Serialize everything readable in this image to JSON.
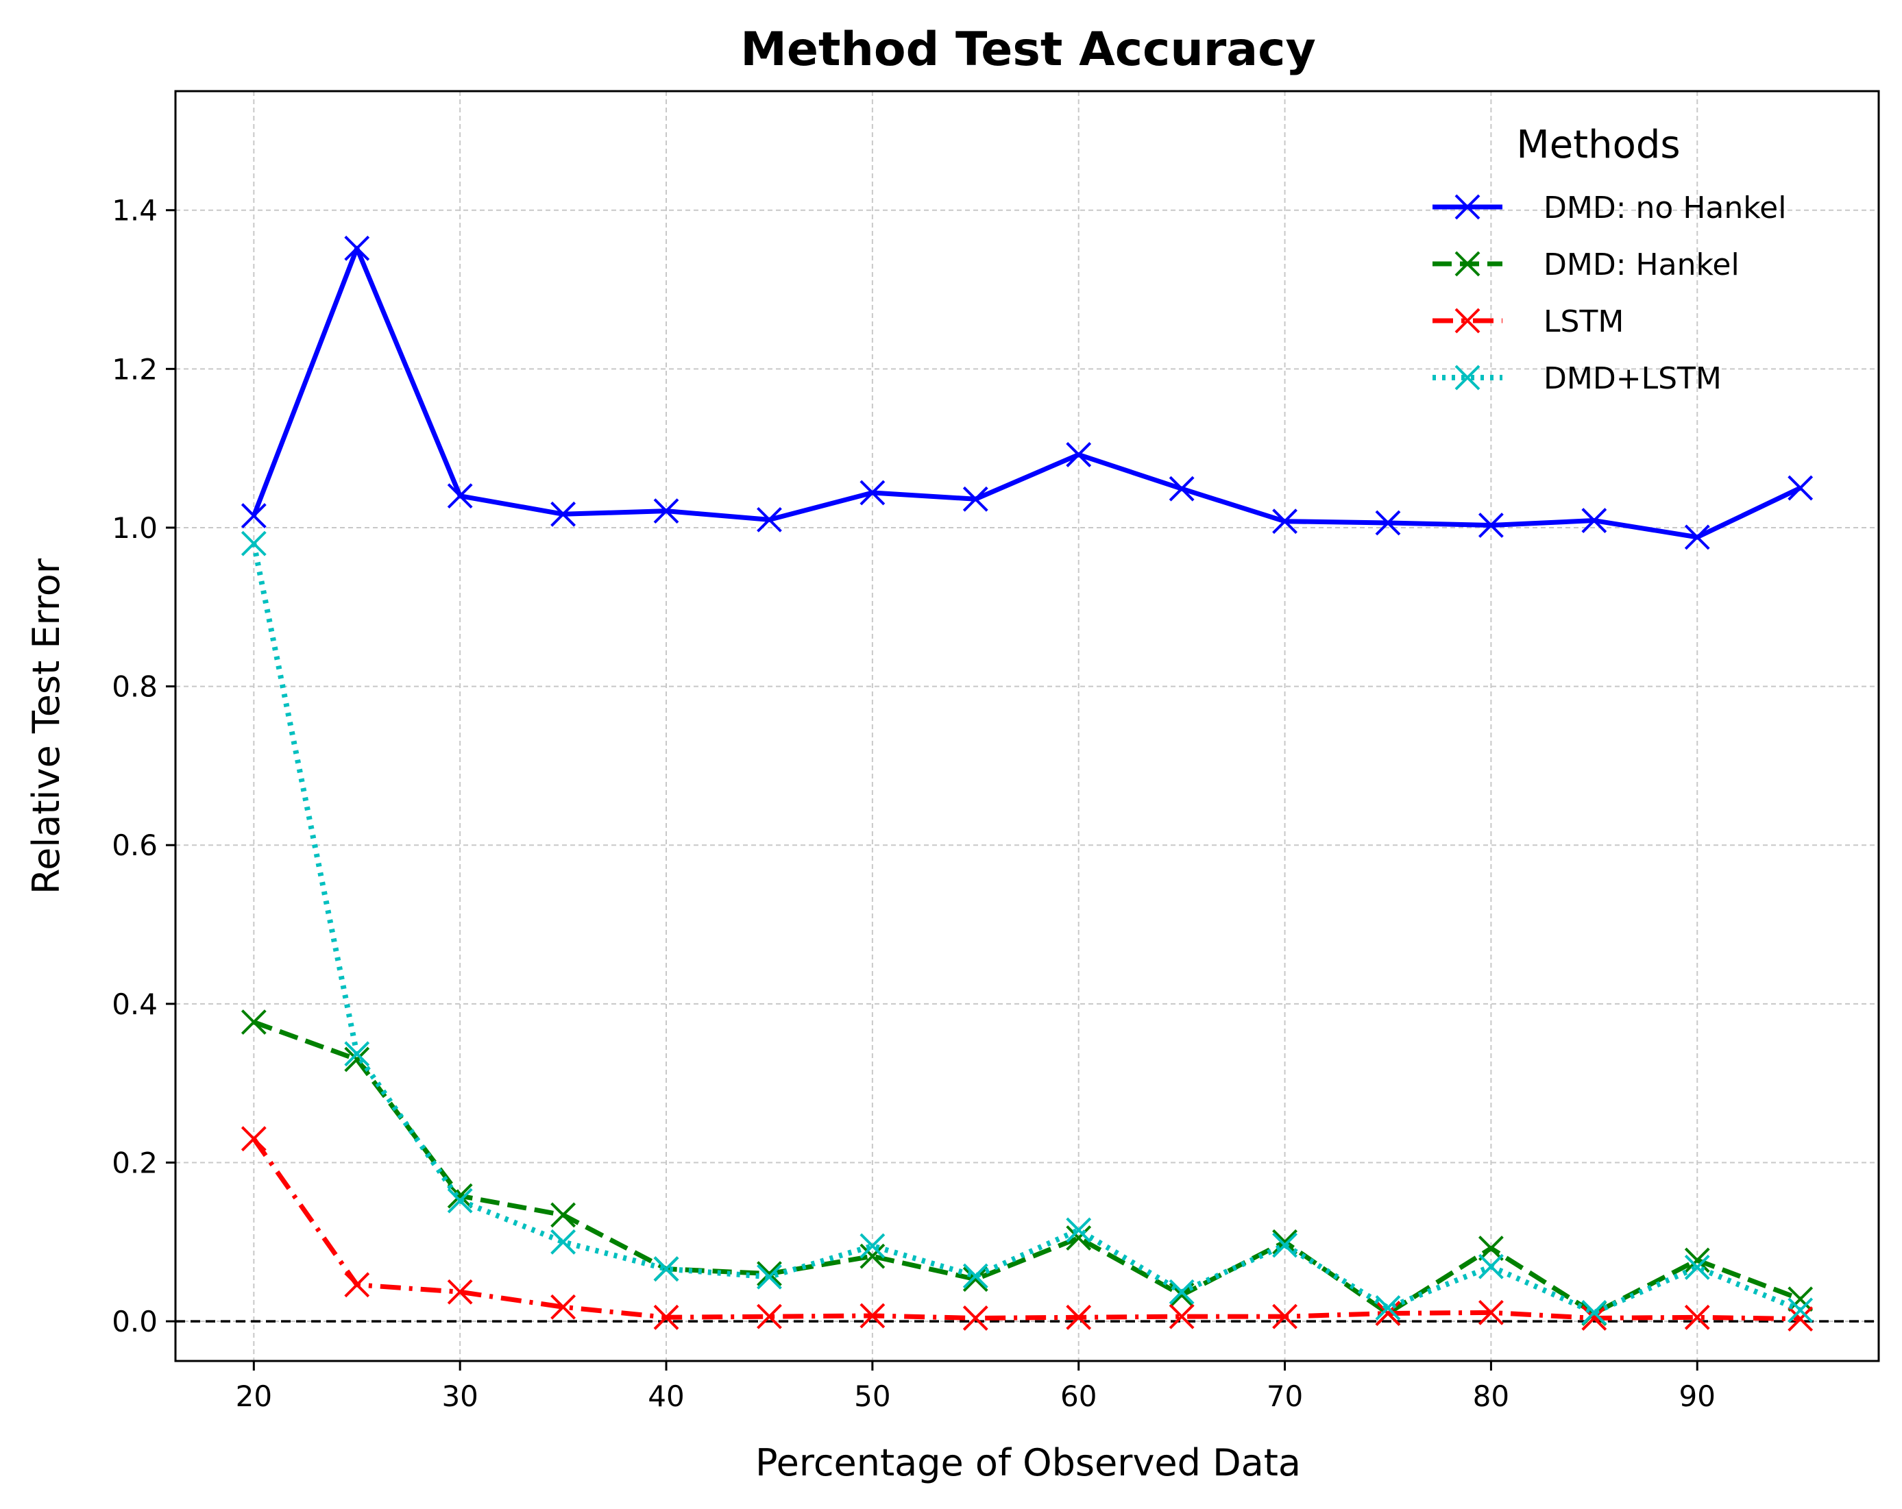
{
  "chart_data": {
    "type": "line",
    "title": "Method Test Accuracy",
    "xlabel": "Percentage of Observed Data",
    "ylabel": "Relative Test Error",
    "xlim": [
      16.2,
      98.8
    ],
    "ylim": [
      -0.05,
      1.55
    ],
    "xticks": [
      20,
      30,
      40,
      50,
      60,
      70,
      80,
      90
    ],
    "xtick_labels": [
      "20",
      "30",
      "40",
      "50",
      "60",
      "70",
      "80",
      "90"
    ],
    "yticks": [
      0.0,
      0.2,
      0.4,
      0.6,
      0.8,
      1.0,
      1.2,
      1.4
    ],
    "ytick_labels": [
      "0.0",
      "0.2",
      "0.4",
      "0.6",
      "0.8",
      "1.0",
      "1.2",
      "1.4"
    ],
    "grid": true,
    "reference_line": {
      "y": 0.0,
      "style": "dashed",
      "color": "#000000"
    },
    "legend": {
      "title": "Methods",
      "placement": "upper right"
    },
    "x": [
      20,
      25,
      30,
      35,
      40,
      45,
      50,
      55,
      60,
      65,
      70,
      75,
      80,
      85,
      90,
      95
    ],
    "series": [
      {
        "name": "DMD: no Hankel",
        "color": "#0000ff",
        "line_style": "solid",
        "marker": "x",
        "values": [
          1.015,
          1.352,
          1.04,
          1.017,
          1.021,
          1.01,
          1.044,
          1.036,
          1.092,
          1.049,
          1.008,
          1.006,
          1.003,
          1.009,
          0.988,
          1.05
        ]
      },
      {
        "name": "DMD: Hankel",
        "color": "#008000",
        "line_style": "dashed",
        "marker": "x",
        "values": [
          0.377,
          0.33,
          0.158,
          0.134,
          0.066,
          0.06,
          0.082,
          0.053,
          0.105,
          0.033,
          0.1,
          0.01,
          0.092,
          0.01,
          0.077,
          0.028
        ]
      },
      {
        "name": "LSTM",
        "color": "#ff0000",
        "line_style": "dashdot",
        "marker": "x",
        "values": [
          0.23,
          0.046,
          0.037,
          0.018,
          0.005,
          0.006,
          0.007,
          0.004,
          0.005,
          0.006,
          0.006,
          0.01,
          0.011,
          0.004,
          0.005,
          0.003
        ]
      },
      {
        "name": "DMD+LSTM",
        "color": "#00bfbf",
        "line_style": "dotted",
        "marker": "x",
        "values": [
          0.98,
          0.337,
          0.152,
          0.1,
          0.066,
          0.056,
          0.095,
          0.057,
          0.115,
          0.037,
          0.096,
          0.017,
          0.069,
          0.011,
          0.068,
          0.014
        ]
      }
    ]
  }
}
